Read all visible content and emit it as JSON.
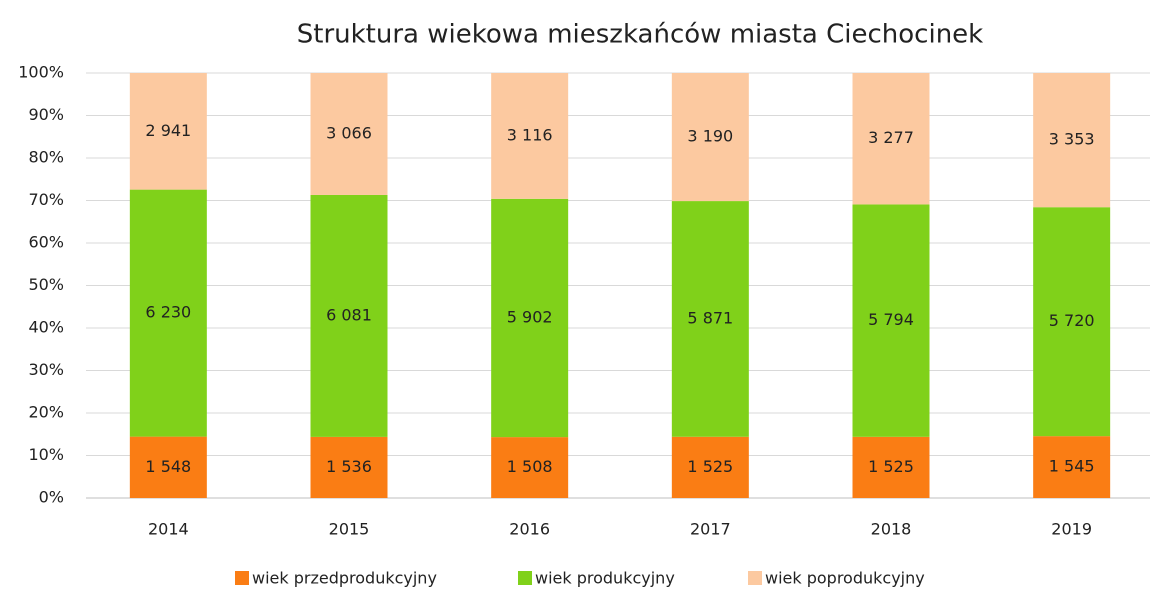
{
  "chart_data": {
    "type": "bar",
    "stacking": "percent",
    "title": "Struktura wiekowa mieszkańców miasta Ciechocinek",
    "categories": [
      "2014",
      "2015",
      "2016",
      "2017",
      "2018",
      "2019"
    ],
    "series": [
      {
        "name": "wiek przedprodukcyjny",
        "color": "#fa7d14",
        "values": [
          1548,
          1536,
          1508,
          1525,
          1525,
          1545
        ],
        "value_labels": [
          "1 548",
          "1 536",
          "1 508",
          "1 525",
          "1 525",
          "1 545"
        ]
      },
      {
        "name": "wiek produkcyjny",
        "color": "#80d11a",
        "values": [
          6230,
          6081,
          5902,
          5871,
          5794,
          5720
        ],
        "value_labels": [
          "6 230",
          "6 081",
          "5 902",
          "5 871",
          "5 794",
          "5 720"
        ]
      },
      {
        "name": "wiek poprodukcyjny",
        "color": "#fcc9a0",
        "values": [
          2941,
          3066,
          3116,
          3190,
          3277,
          3353
        ],
        "value_labels": [
          "2 941",
          "3 066",
          "3 116",
          "3 190",
          "3 277",
          "3 353"
        ]
      }
    ],
    "ylim": [
      0,
      100
    ],
    "yticks": [
      {
        "value": 0,
        "label": "0%"
      },
      {
        "value": 10,
        "label": "10%"
      },
      {
        "value": 20,
        "label": "20%"
      },
      {
        "value": 30,
        "label": "30%"
      },
      {
        "value": 40,
        "label": "40%"
      },
      {
        "value": 50,
        "label": "50%"
      },
      {
        "value": 60,
        "label": "60%"
      },
      {
        "value": 70,
        "label": "70%"
      },
      {
        "value": 80,
        "label": "80%"
      },
      {
        "value": 90,
        "label": "90%"
      },
      {
        "value": 100,
        "label": "100%"
      }
    ],
    "grid": true,
    "legend": "bottom"
  }
}
